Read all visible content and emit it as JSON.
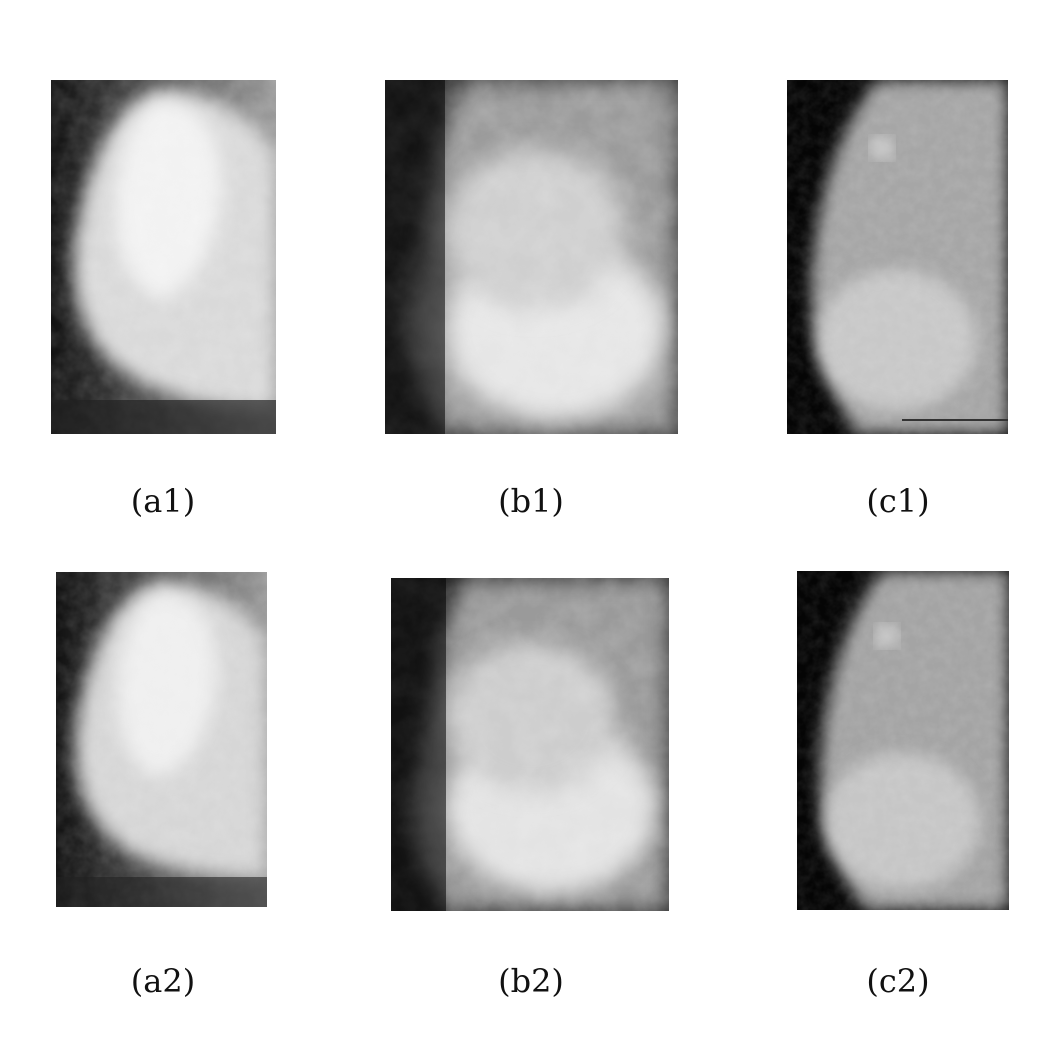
{
  "figure": {
    "panels": [
      {
        "id": "a1",
        "caption": "(a1)"
      },
      {
        "id": "b1",
        "caption": "(b1)"
      },
      {
        "id": "c1",
        "caption": "(c1)"
      },
      {
        "id": "a2",
        "caption": "(a2)"
      },
      {
        "id": "b2",
        "caption": "(b2)"
      },
      {
        "id": "c2",
        "caption": "(c2)"
      }
    ]
  }
}
